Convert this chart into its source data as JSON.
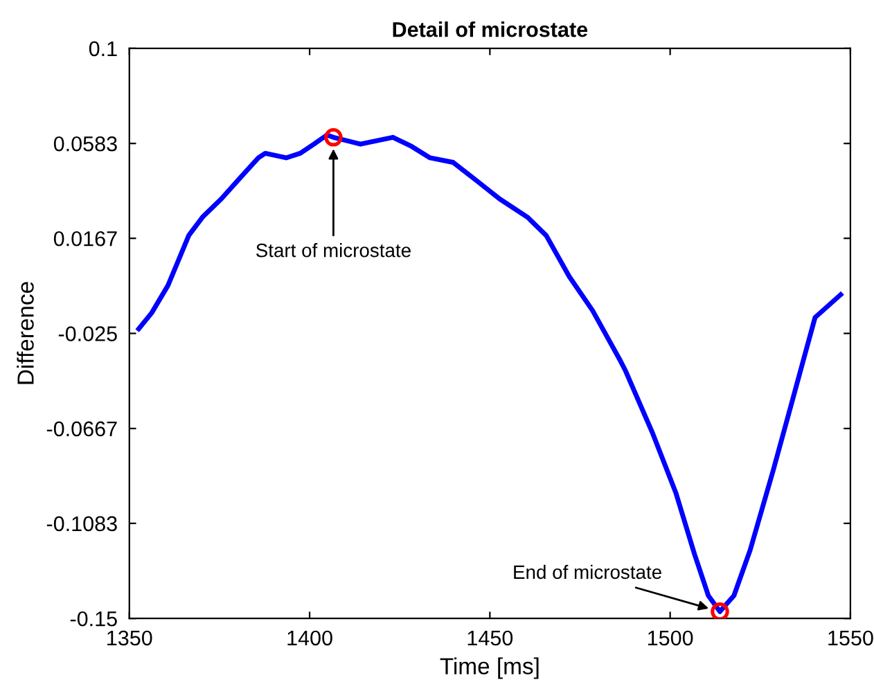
{
  "chart_data": {
    "type": "line",
    "title": "Detail of microstate",
    "xlabel": "Time [ms]",
    "ylabel": "Difference",
    "xlim": [
      1350,
      1550
    ],
    "xticks": [
      1350,
      1400,
      1450,
      1500,
      1550
    ],
    "ylim": [
      -0.15,
      0.1
    ],
    "yticks": [
      -0.15,
      -0.1083,
      -0.0667,
      -0.025,
      0.0167,
      0.0583,
      0.1
    ],
    "grid": false,
    "legend": false,
    "series": [
      {
        "color": "#0000ff",
        "marker": "none",
        "line_style": "solid",
        "x": [
          1352.6,
          1356.2,
          1360.7,
          1366.5,
          1370.3,
          1375.5,
          1380.6,
          1385.8,
          1387.7,
          1393.5,
          1397.4,
          1401.2,
          1404.8,
          1406.6,
          1414.1,
          1423.1,
          1428.3,
          1433.4,
          1439.8,
          1446.3,
          1452.7,
          1460.4,
          1465.6,
          1472.0,
          1478.5,
          1486.2,
          1487.5,
          1495.2,
          1501.6,
          1506.8,
          1510.6,
          1513.8,
          1517.7,
          1522.2,
          1528.6,
          1533.8,
          1537.6,
          1540.2,
          1547.3
        ],
        "values": [
          -0.023,
          -0.016,
          -0.004,
          0.018,
          0.026,
          0.034,
          0.043,
          0.052,
          0.054,
          0.052,
          0.054,
          0.058,
          0.062,
          0.061,
          0.058,
          0.061,
          0.057,
          0.052,
          0.05,
          0.042,
          0.034,
          0.026,
          0.018,
          0.0,
          -0.015,
          -0.037,
          -0.041,
          -0.069,
          -0.095,
          -0.122,
          -0.14,
          -0.147,
          -0.14,
          -0.12,
          -0.085,
          -0.055,
          -0.033,
          -0.018,
          -0.008
        ]
      },
      {
        "type": "scatter",
        "color": "#ff0000",
        "marker": "circle",
        "x": [
          1406.6,
          1513.8
        ],
        "values": [
          0.061,
          -0.147
        ]
      }
    ],
    "annotations": [
      "Start of microstate",
      "End of microstate"
    ]
  }
}
